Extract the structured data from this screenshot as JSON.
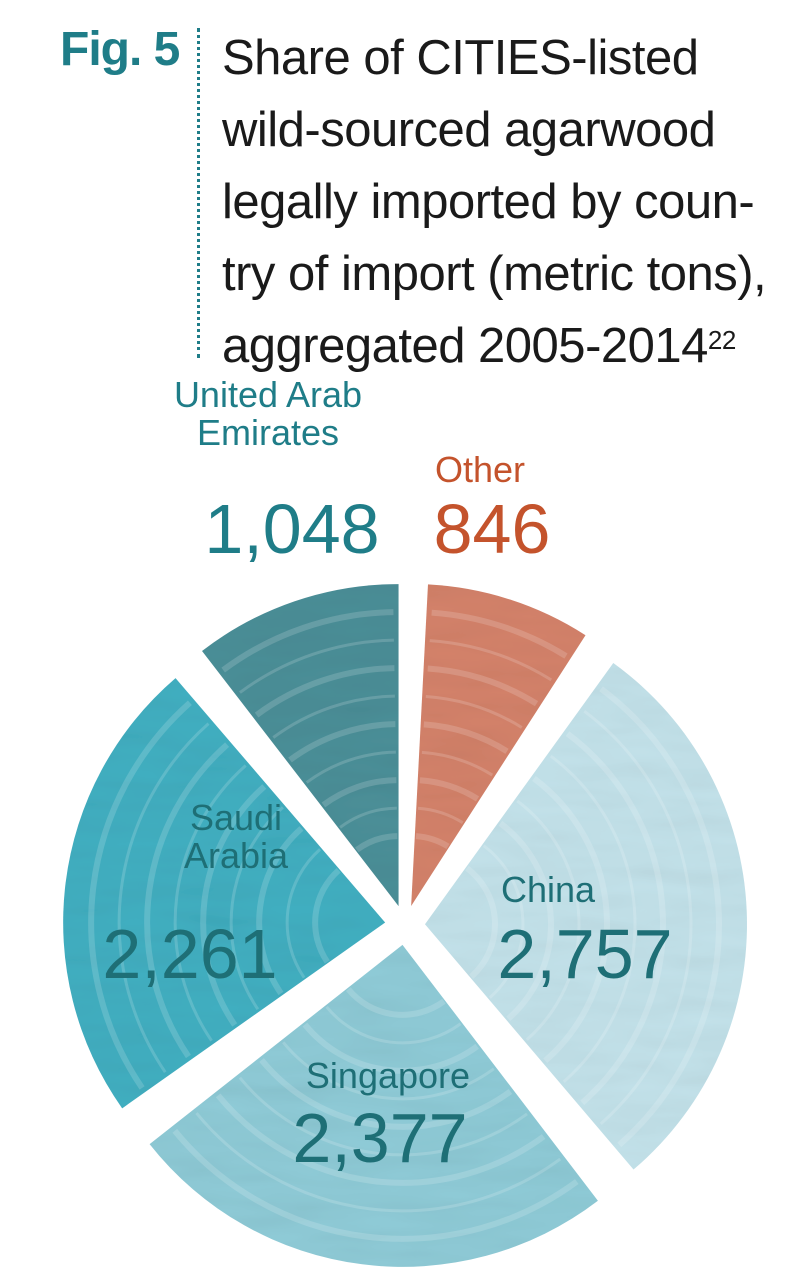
{
  "header": {
    "fig_label": "Fig. 5",
    "title_lines": [
      "Share of CITIES-listed",
      "wild-sourced agarwood",
      "legally imported by coun-",
      "try of import (metric tons),",
      "aggregated 2005-2014"
    ],
    "footnote_ref": "22"
  },
  "chart_data": {
    "type": "pie",
    "title": "Share of CITIES-listed wild-sourced agarwood legally imported by country of import (metric tons), aggregated 2005-2014",
    "unit": "metric tons",
    "slices": [
      {
        "label": "Other",
        "value": 846,
        "value_text": "846",
        "color": "#d4826a",
        "label_color": "#c4532c"
      },
      {
        "label": "China",
        "value": 2757,
        "value_text": "2,757",
        "color": "#c3e2ea",
        "label_color": "#1e6f76"
      },
      {
        "label": "Singapore",
        "value": 2377,
        "value_text": "2,377",
        "color": "#8fcbd7",
        "label_color": "#1e6f76"
      },
      {
        "label": "Saudi Arabia",
        "value": 2261,
        "value_text": "2,261",
        "color": "#41afc1",
        "label_color": "#1e6f76"
      },
      {
        "label": "United Arab Emirates",
        "value": 1048,
        "value_text": "1,048",
        "color": "#4b8f98",
        "label_color": "#1f7d88"
      }
    ],
    "legend": "none"
  }
}
